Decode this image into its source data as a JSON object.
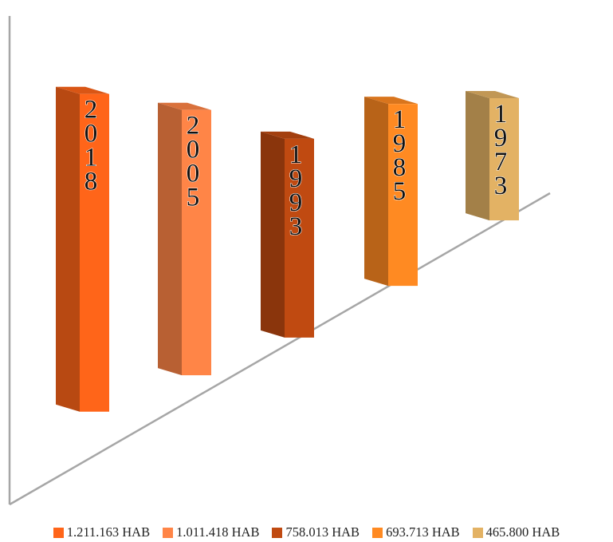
{
  "chart_data": {
    "type": "bar",
    "title": "",
    "xlabel": "",
    "ylabel": "",
    "categories": [
      "2018",
      "2005",
      "1993",
      "1985",
      "1973"
    ],
    "series": [
      {
        "name": "1.211.163 HAB",
        "color": "#FF6519",
        "value": 1211163,
        "bar_label": "2018"
      },
      {
        "name": "1.011.418 HAB",
        "color": "#FF8547",
        "value": 1011418,
        "bar_label": "2005"
      },
      {
        "name": "758.013 HAB",
        "color": "#C04A11",
        "value": 758013,
        "bar_label": "1993"
      },
      {
        "name": "693.713 HAB",
        "color": "#FF8A22",
        "value": 693713,
        "bar_label": "1985"
      },
      {
        "name": "465.800 HAB",
        "color": "#E3B264",
        "value": 465800,
        "bar_label": "1973"
      }
    ],
    "legend_position": "bottom",
    "grid": false
  }
}
